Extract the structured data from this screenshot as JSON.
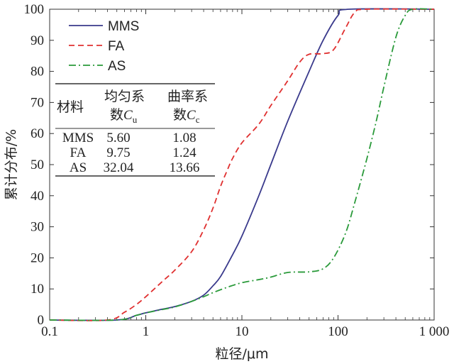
{
  "chart_data": {
    "type": "line",
    "xlabel": "粒径/μm",
    "ylabel": "累计分布/%",
    "xscale": "log",
    "xlim": [
      0.1,
      1000
    ],
    "ylim": [
      0,
      100
    ],
    "x_ticks": [
      "0.1",
      "1",
      "10",
      "100",
      "1 000"
    ],
    "y_ticks": [
      "0",
      "10",
      "20",
      "30",
      "40",
      "50",
      "60",
      "70",
      "80",
      "90",
      "100"
    ],
    "legend_position": "top-left",
    "series": [
      {
        "name": "MMS",
        "color": "#3a3a8c",
        "dash": "solid",
        "points": [
          [
            0.1,
            0
          ],
          [
            0.5,
            0
          ],
          [
            0.8,
            1.5
          ],
          [
            1,
            2.3
          ],
          [
            1.5,
            3.5
          ],
          [
            2,
            4.3
          ],
          [
            3,
            6
          ],
          [
            4,
            8
          ],
          [
            5,
            11
          ],
          [
            6,
            14
          ],
          [
            8,
            21
          ],
          [
            10,
            27
          ],
          [
            15,
            40
          ],
          [
            20,
            50
          ],
          [
            30,
            64
          ],
          [
            50,
            80
          ],
          [
            70,
            90
          ],
          [
            100,
            98
          ],
          [
            130,
            100
          ],
          [
            1000,
            100
          ]
        ]
      },
      {
        "name": "FA",
        "color": "#e03030",
        "dash": "dashed",
        "points": [
          [
            0.1,
            0
          ],
          [
            0.4,
            0
          ],
          [
            0.6,
            2.5
          ],
          [
            0.8,
            5
          ],
          [
            1,
            7.5
          ],
          [
            1.5,
            12.5
          ],
          [
            2,
            16
          ],
          [
            3,
            22
          ],
          [
            4,
            29
          ],
          [
            5,
            36
          ],
          [
            6,
            43
          ],
          [
            7,
            48
          ],
          [
            8,
            52
          ],
          [
            10,
            57
          ],
          [
            15,
            63
          ],
          [
            20,
            69
          ],
          [
            30,
            77
          ],
          [
            40,
            83
          ],
          [
            50,
            85.5
          ],
          [
            70,
            85.7
          ],
          [
            90,
            87
          ],
          [
            120,
            94
          ],
          [
            150,
            99
          ],
          [
            200,
            100
          ],
          [
            1000,
            100
          ]
        ]
      },
      {
        "name": "AS",
        "color": "#2a9a3a",
        "dash": "dashdot",
        "points": [
          [
            0.1,
            0
          ],
          [
            0.5,
            0
          ],
          [
            0.8,
            1.5
          ],
          [
            1,
            2.3
          ],
          [
            1.5,
            3.4
          ],
          [
            2,
            4.2
          ],
          [
            3,
            6
          ],
          [
            4,
            7.5
          ],
          [
            5,
            8.8
          ],
          [
            7,
            10.5
          ],
          [
            10,
            12
          ],
          [
            15,
            13
          ],
          [
            20,
            13.8
          ],
          [
            30,
            15.3
          ],
          [
            50,
            15.5
          ],
          [
            70,
            16.5
          ],
          [
            90,
            20
          ],
          [
            120,
            28
          ],
          [
            150,
            38
          ],
          [
            200,
            52
          ],
          [
            250,
            64
          ],
          [
            300,
            75
          ],
          [
            400,
            91
          ],
          [
            500,
            98
          ],
          [
            600,
            100
          ],
          [
            1000,
            100
          ]
        ]
      }
    ],
    "table": {
      "headers": [
        {
          "main": "材料",
          "sub": ""
        },
        {
          "main": "均匀系",
          "sub": "数",
          "var": "C",
          "subscript": "u"
        },
        {
          "main": "曲率系",
          "sub": "数",
          "var": "C",
          "subscript": "c"
        }
      ],
      "rows": [
        [
          "MMS",
          "5.60",
          "1.08"
        ],
        [
          "FA",
          "9.75",
          "1.24"
        ],
        [
          "AS",
          "32.04",
          "13.66"
        ]
      ]
    }
  }
}
